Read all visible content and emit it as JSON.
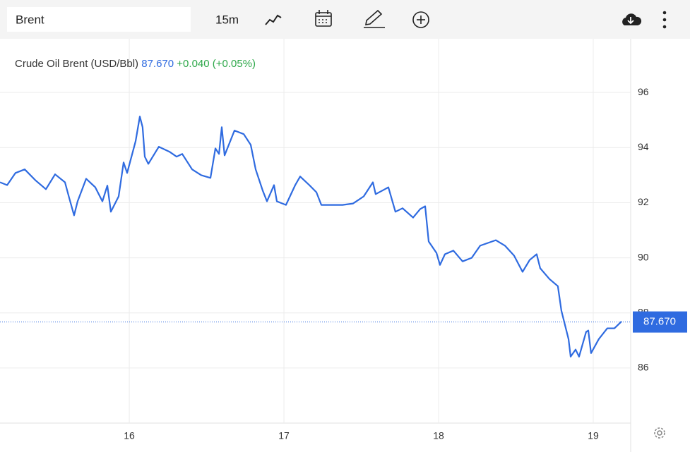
{
  "toolbar": {
    "search": "Brent",
    "interval": "15m"
  },
  "chart_data": {
    "type": "line",
    "title": "Crude Oil Brent (USD/Bbl)",
    "change": "+0.040 (+0.05%)",
    "last": {
      "value": 87.67,
      "label": "87.670"
    },
    "x": [
      15.164,
      15.21,
      15.264,
      15.324,
      15.392,
      15.461,
      15.52,
      15.584,
      15.611,
      15.643,
      15.666,
      15.721,
      15.78,
      15.826,
      15.858,
      15.881,
      15.931,
      15.963,
      15.986,
      16.041,
      16.068,
      16.086,
      16.1,
      16.123,
      16.191,
      16.26,
      16.306,
      16.342,
      16.406,
      16.465,
      16.525,
      16.557,
      16.58,
      16.598,
      16.616,
      16.68,
      16.74,
      16.785,
      16.817,
      16.863,
      16.89,
      16.936,
      16.954,
      17.013,
      17.073,
      17.105,
      17.164,
      17.21,
      17.242,
      17.31,
      17.379,
      17.447,
      17.516,
      17.575,
      17.593,
      17.653,
      17.675,
      17.721,
      17.767,
      17.835,
      17.881,
      17.913,
      17.936,
      17.986,
      18.009,
      18.041,
      18.096,
      18.155,
      18.214,
      18.269,
      18.37,
      18.429,
      18.488,
      18.543,
      18.589,
      18.634,
      18.657,
      18.717,
      18.771,
      18.794,
      18.84,
      18.854,
      18.886,
      18.908,
      18.954,
      18.968,
      18.986,
      19.036,
      19.091,
      19.137,
      19.183
    ],
    "series": [
      {
        "name": "Brent",
        "color": "#2f6be0",
        "values": [
          92.74,
          92.64,
          93.08,
          93.21,
          92.82,
          92.49,
          93.03,
          92.74,
          92.18,
          91.54,
          92.05,
          92.87,
          92.56,
          92.05,
          92.62,
          91.67,
          92.23,
          93.46,
          93.08,
          94.23,
          95.13,
          94.74,
          93.67,
          93.41,
          94.03,
          93.85,
          93.67,
          93.77,
          93.21,
          93.0,
          92.9,
          93.97,
          93.77,
          94.74,
          93.72,
          94.62,
          94.49,
          94.1,
          93.21,
          92.44,
          92.05,
          92.64,
          92.05,
          91.92,
          92.64,
          92.95,
          92.64,
          92.38,
          91.92,
          91.92,
          91.92,
          91.97,
          92.23,
          92.74,
          92.31,
          92.49,
          92.56,
          91.67,
          91.8,
          91.46,
          91.77,
          91.87,
          90.59,
          90.18,
          89.74,
          90.13,
          90.26,
          89.87,
          90.0,
          90.44,
          90.64,
          90.44,
          90.08,
          89.49,
          89.92,
          90.13,
          89.62,
          89.23,
          88.97,
          88.08,
          87.05,
          86.41,
          86.67,
          86.41,
          87.31,
          87.36,
          86.54,
          87.05,
          87.44,
          87.44,
          87.69
        ]
      }
    ],
    "xlim": [
      15.164,
      19.242
    ],
    "xticks": [
      16,
      17,
      18,
      19
    ],
    "ylim": [
      84,
      97.95
    ],
    "yticks": [
      86,
      88,
      90,
      92,
      94,
      96
    ],
    "grid": true
  }
}
